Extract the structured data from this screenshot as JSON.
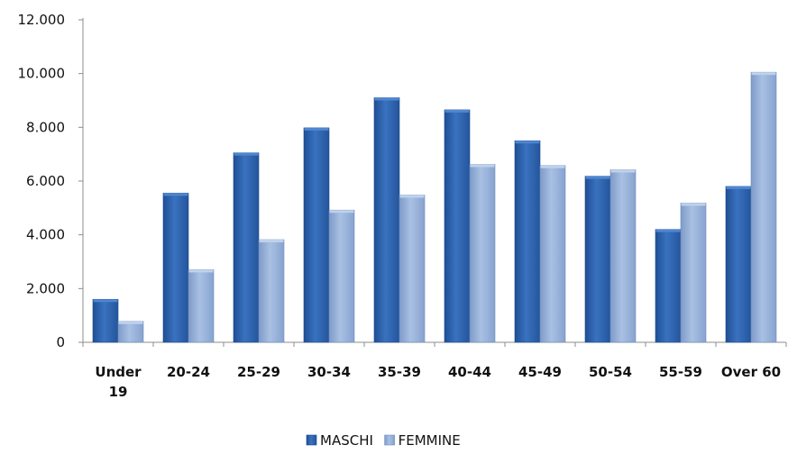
{
  "chart_data": {
    "type": "bar",
    "title": "",
    "xlabel": "",
    "ylabel": "",
    "categories": [
      "Under 19",
      "20-24",
      "25-29",
      "30-34",
      "35-39",
      "40-44",
      "45-49",
      "50-54",
      "55-59",
      "Over 60"
    ],
    "series": [
      {
        "name": "MASCHI",
        "values": [
          1600,
          5550,
          7050,
          7980,
          9100,
          8650,
          7500,
          6180,
          4200,
          5800
        ]
      },
      {
        "name": "FEMMINE",
        "values": [
          780,
          2700,
          3820,
          4920,
          5480,
          6620,
          6580,
          6420,
          5180,
          10050
        ]
      }
    ],
    "ylim": [
      0,
      12000
    ],
    "yticks": [
      0,
      2000,
      4000,
      6000,
      8000,
      10000,
      12000
    ],
    "ytick_labels": [
      "0",
      "2.000",
      "4.000",
      "6.000",
      "8.000",
      "10.000",
      "12.000"
    ],
    "grid": false,
    "legend_position": "bottom",
    "colors": {
      "MASCHI": "#2f64ad",
      "FEMMINE": "#93aed6"
    }
  }
}
